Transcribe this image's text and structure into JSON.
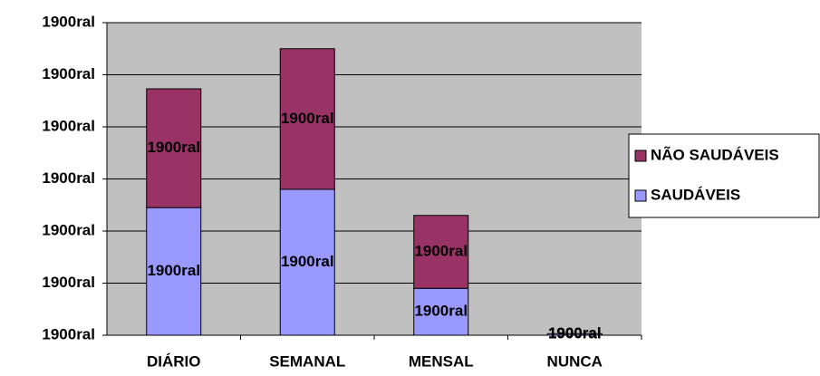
{
  "chart_data": {
    "type": "stacked_bar",
    "categories": [
      "DIÁRIO",
      "SEMANAL",
      "MENSAL",
      "NUNCA"
    ],
    "series": [
      {
        "name": "SAUDÁVEIS",
        "color": "#9999ff",
        "values": [
          2.45,
          2.8,
          0.9,
          0.03
        ],
        "value_labels": [
          "1900ral",
          "1900ral",
          "1900ral",
          "1900ral"
        ]
      },
      {
        "name": "NÃO SAUDÁVEIS",
        "color": "#993366",
        "values": [
          2.28,
          2.7,
          1.4,
          0
        ],
        "value_labels": [
          "1900ral",
          "1900ral",
          "1900ral",
          "1900ral"
        ]
      }
    ],
    "ylim": [
      0,
      6
    ],
    "yticks": [
      {
        "value": 0,
        "label": "1900ral"
      },
      {
        "value": 1,
        "label": "1900ral"
      },
      {
        "value": 2,
        "label": "1900ral"
      },
      {
        "value": 3,
        "label": "1900ral"
      },
      {
        "value": 4,
        "label": "1900ral"
      },
      {
        "value": 5,
        "label": "1900ral"
      },
      {
        "value": 6,
        "label": "1900ral"
      }
    ],
    "grid": true,
    "legend": "right"
  }
}
